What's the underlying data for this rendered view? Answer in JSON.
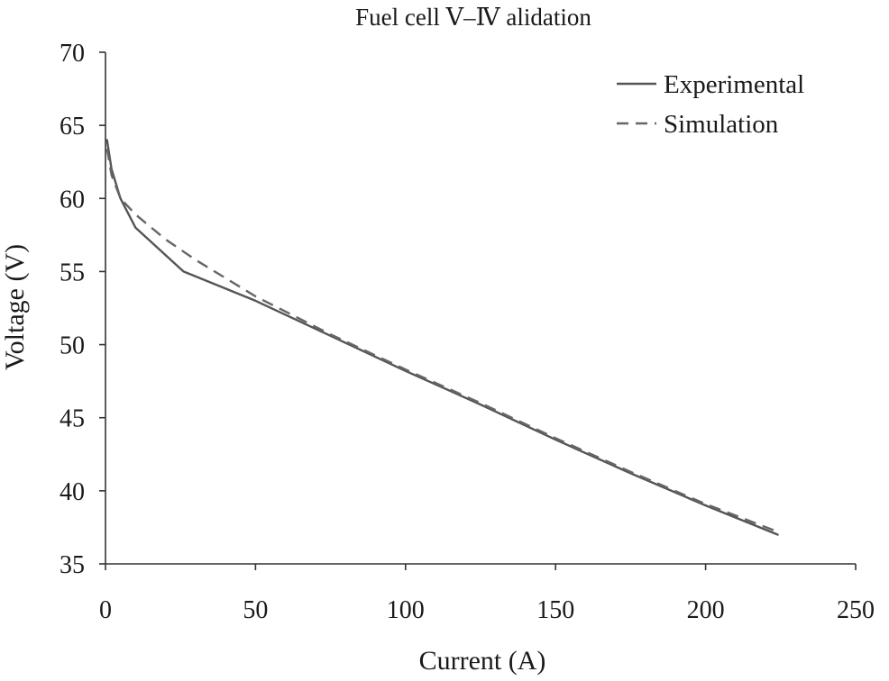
{
  "chart_data": {
    "type": "line",
    "title": "Fuel cell  Ⅴ–Ⅳ  alidation",
    "xlabel": "Current (A)",
    "ylabel": "Voltage (V)",
    "xlim": [
      0,
      250
    ],
    "ylim": [
      35,
      70
    ],
    "x_ticks": [
      0,
      50,
      100,
      150,
      200,
      250
    ],
    "y_ticks": [
      35,
      40,
      45,
      50,
      55,
      60,
      65,
      70
    ],
    "grid": false,
    "legend_position": "top-right",
    "series": [
      {
        "name": "Experimental",
        "line_style": "solid",
        "color": "#555555",
        "x": [
          0.5,
          2,
          5,
          10,
          26,
          50,
          75,
          100,
          125,
          150,
          175,
          200,
          224
        ],
        "y": [
          64,
          62,
          60,
          58,
          55,
          53,
          50.6,
          48.2,
          45.9,
          43.5,
          41.2,
          39,
          37
        ]
      },
      {
        "name": "Simulation",
        "line_style": "dashed",
        "color": "#666666",
        "x": [
          0.5,
          2,
          5,
          10,
          20,
          30,
          50,
          75,
          100,
          125,
          150,
          175,
          200,
          224
        ],
        "y": [
          63.4,
          61.6,
          60,
          58.9,
          57.2,
          55.8,
          53.3,
          50.7,
          48.3,
          46,
          43.6,
          41.3,
          39.1,
          37.2
        ]
      }
    ]
  }
}
